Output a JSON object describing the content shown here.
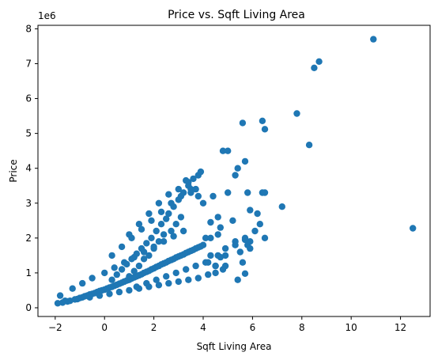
{
  "chart_data": {
    "type": "scatter",
    "title": "Price vs. Sqft Living Area",
    "xlabel": "Sqft Living Area",
    "ylabel": "Price",
    "y_offset_label": "1e6",
    "xlim": [
      -2.7,
      13.2
    ],
    "ylim": [
      -0.25,
      8.1
    ],
    "xticks": [
      -2,
      0,
      2,
      4,
      6,
      8,
      10,
      12
    ],
    "yticks": [
      0,
      1,
      2,
      3,
      4,
      5,
      6,
      7,
      8
    ],
    "y_scale_factor": 1000000,
    "grid": false,
    "legend": "none",
    "marker_color": "#1f77b4",
    "series": [
      {
        "x": [
          -1.9,
          -1.7,
          -1.5,
          -1.4,
          -1.2,
          -1.0,
          -0.9,
          -0.8,
          -0.7,
          -0.6,
          -0.5,
          -0.4,
          -0.3,
          -0.2,
          -0.1,
          0.0,
          0.1,
          0.2,
          0.3,
          0.4,
          0.5,
          0.6,
          0.7,
          0.8,
          0.9,
          1.0,
          1.1,
          1.2,
          1.3,
          1.4,
          1.5,
          1.6,
          1.7,
          1.8,
          1.9,
          2.0,
          2.1,
          2.2,
          2.3,
          2.4,
          2.5,
          2.6,
          2.7,
          2.8,
          2.9,
          3.0,
          3.1,
          3.2,
          3.3,
          3.4,
          3.5,
          3.6,
          3.7,
          3.8,
          3.9,
          4.0,
          -1.8,
          -1.3,
          -0.9,
          -0.5,
          0.0,
          0.4,
          0.8,
          1.2,
          1.6,
          2.0,
          2.4,
          2.8,
          3.2,
          0.3,
          0.7,
          1.1,
          1.5,
          1.9,
          2.3,
          2.7,
          3.1,
          3.5,
          1.0,
          1.4,
          1.8,
          2.2,
          2.6,
          3.0,
          3.4,
          3.8,
          1.3,
          1.7,
          2.1,
          2.5,
          2.9,
          3.3,
          3.7,
          4.1,
          -1.6,
          -1.1,
          -0.6,
          -0.2,
          0.2,
          0.6,
          1.0,
          1.4,
          1.8,
          2.2,
          2.6,
          3.0,
          3.4,
          3.8,
          4.2,
          4.5,
          4.9,
          5.3,
          5.7,
          6.1,
          6.5,
          7.2,
          7.8,
          8.3,
          8.5,
          8.7,
          10.9,
          12.5,
          4.8,
          5.0,
          5.6,
          5.7,
          6.4,
          6.5,
          6.4,
          5.8,
          5.4,
          5.3,
          5.0,
          4.4,
          4.0,
          3.8,
          3.7,
          5.9,
          5.2,
          4.7,
          4.3,
          4.6,
          5.5,
          6.2,
          6.3,
          6.5,
          5.9,
          5.6,
          5.9,
          5.7,
          5.3,
          4.9,
          4.6,
          4.5,
          4.2,
          4.3,
          4.8,
          5.4,
          5.7,
          5.8,
          4.9,
          4.6,
          4.3,
          4.1,
          4.5,
          4.7,
          3.9,
          3.6,
          3.4,
          3.2,
          3.0,
          2.8,
          2.6,
          2.5,
          2.3,
          2.1,
          1.9,
          1.7,
          1.5,
          1.3,
          1.1,
          0.9,
          0.7,
          0.5,
          0.3,
          3.3,
          3.5,
          3.1,
          2.9,
          2.7,
          2.4,
          2.2,
          2.0,
          1.8,
          1.6,
          1.4,
          1.2,
          1.0,
          0.8
        ],
        "y": [
          0.13,
          0.15,
          0.18,
          0.2,
          0.24,
          0.28,
          0.3,
          0.33,
          0.35,
          0.38,
          0.4,
          0.42,
          0.45,
          0.48,
          0.5,
          0.52,
          0.55,
          0.58,
          0.6,
          0.63,
          0.66,
          0.69,
          0.72,
          0.75,
          0.78,
          0.8,
          0.84,
          0.87,
          0.9,
          0.93,
          0.96,
          1.0,
          1.03,
          1.06,
          1.1,
          1.13,
          1.17,
          1.2,
          1.24,
          1.27,
          1.3,
          1.34,
          1.37,
          1.4,
          1.44,
          1.47,
          1.5,
          1.53,
          1.57,
          1.6,
          1.63,
          1.66,
          1.7,
          1.73,
          1.76,
          1.8,
          0.35,
          0.55,
          0.7,
          0.85,
          1.0,
          1.15,
          1.3,
          1.45,
          1.6,
          1.75,
          1.9,
          2.05,
          2.2,
          1.5,
          1.75,
          2.0,
          2.25,
          2.5,
          2.75,
          3.0,
          3.2,
          3.3,
          2.1,
          2.4,
          2.7,
          3.0,
          3.25,
          3.4,
          3.6,
          3.8,
          0.6,
          0.7,
          0.8,
          0.9,
          1.0,
          1.1,
          1.2,
          1.3,
          0.2,
          0.25,
          0.3,
          0.35,
          0.4,
          0.45,
          0.5,
          0.55,
          0.6,
          0.65,
          0.7,
          0.75,
          0.8,
          0.85,
          0.95,
          1.2,
          1.5,
          1.8,
          2.0,
          2.2,
          3.3,
          2.9,
          5.57,
          4.67,
          6.88,
          7.06,
          7.7,
          2.28,
          4.5,
          4.5,
          5.3,
          4.2,
          5.36,
          5.12,
          3.3,
          3.3,
          4.0,
          3.8,
          3.3,
          3.2,
          3.0,
          3.2,
          3.4,
          2.8,
          2.5,
          2.3,
          2.0,
          2.1,
          1.6,
          2.7,
          2.4,
          2.0,
          1.7,
          1.3,
          1.9,
          1.95,
          1.9,
          1.2,
          1.5,
          1.2,
          1.3,
          1.5,
          1.1,
          0.8,
          0.98,
          1.8,
          1.7,
          2.6,
          2.45,
          2.0,
          1.0,
          1.45,
          3.9,
          3.7,
          3.5,
          3.3,
          3.1,
          2.9,
          2.7,
          2.55,
          2.4,
          2.2,
          2.0,
          1.85,
          1.7,
          1.55,
          1.4,
          1.25,
          1.1,
          0.95,
          0.8,
          3.65,
          3.4,
          2.6,
          2.4,
          2.2,
          2.1,
          1.9,
          1.7,
          1.5,
          1.4,
          1.2,
          1.05,
          0.9,
          0.75
        ]
      }
    ]
  }
}
